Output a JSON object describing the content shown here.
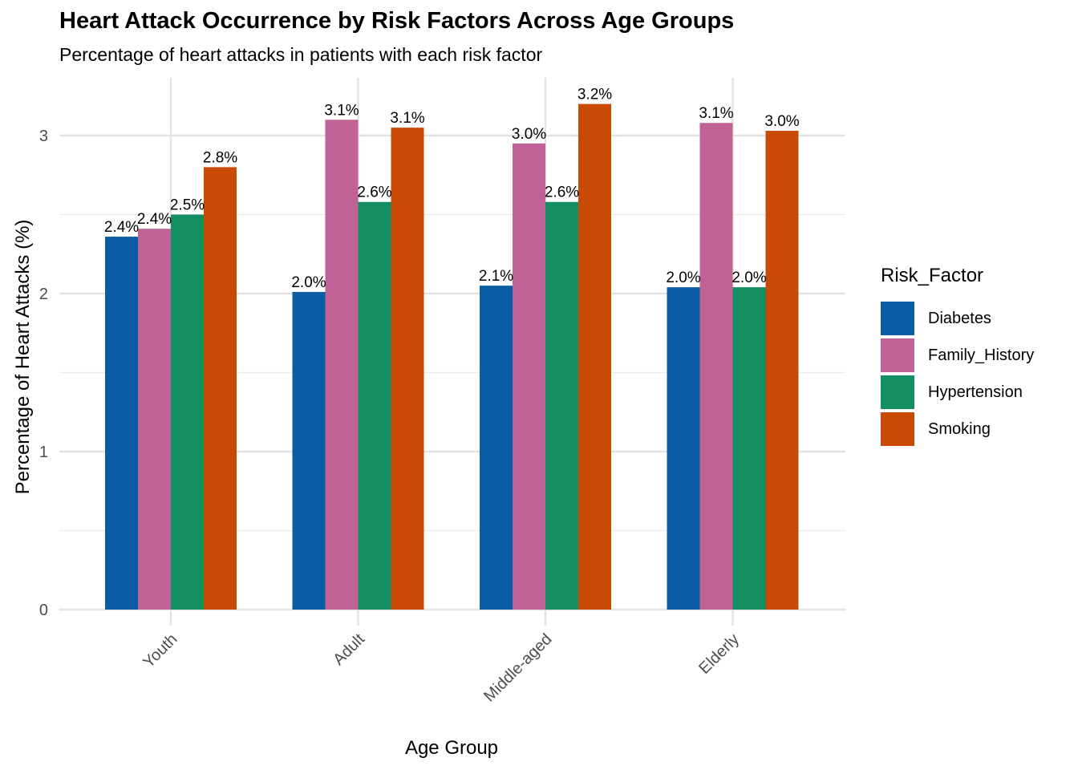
{
  "chart_data": {
    "type": "bar",
    "title": "Heart Attack Occurrence by Risk Factors Across Age Groups",
    "subtitle": "Percentage of heart attacks in patients with each risk factor",
    "xlabel": "Age Group",
    "ylabel": "Percentage of Heart Attacks (%)",
    "ylim": [
      0,
      3.3
    ],
    "yticks": [
      0,
      1,
      2,
      3
    ],
    "grid": true,
    "legend_title": "Risk_Factor",
    "legend_position": "right",
    "categories": [
      "Youth",
      "Adult",
      "Middle-aged",
      "Elderly"
    ],
    "series": [
      {
        "name": "Diabetes",
        "color": "#0B5DA3",
        "values": [
          2.36,
          2.01,
          2.05,
          2.04
        ],
        "labels": [
          "2.4%",
          "2.0%",
          "2.1%",
          "2.0%"
        ]
      },
      {
        "name": "Family_History",
        "color": "#C06296",
        "values": [
          2.41,
          3.1,
          2.95,
          3.08
        ],
        "labels": [
          "2.4%",
          "3.1%",
          "3.0%",
          "3.1%"
        ]
      },
      {
        "name": "Hypertension",
        "color": "#148F62",
        "values": [
          2.5,
          2.58,
          2.58,
          2.04
        ],
        "labels": [
          "2.5%",
          "2.6%",
          "2.6%",
          "2.0%"
        ]
      },
      {
        "name": "Smoking",
        "color": "#C84A05",
        "values": [
          2.8,
          3.05,
          3.2,
          3.03
        ],
        "labels": [
          "2.8%",
          "3.1%",
          "3.2%",
          "3.0%"
        ]
      }
    ]
  }
}
